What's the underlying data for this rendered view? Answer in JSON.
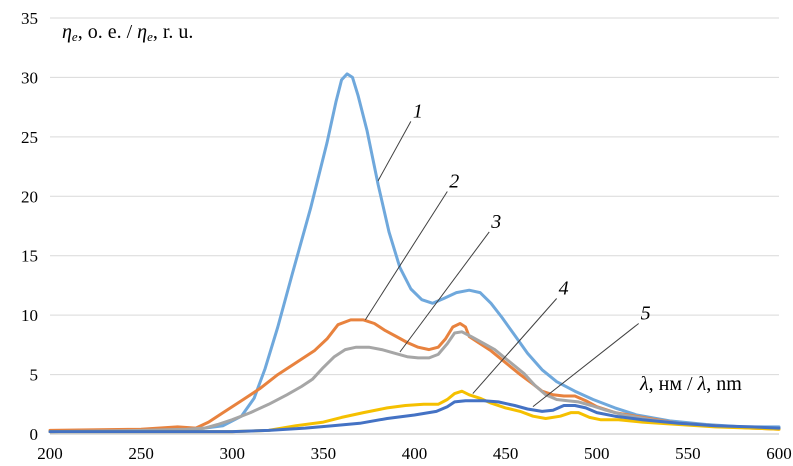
{
  "chart_data": {
    "type": "line",
    "title": "",
    "ylabel": {
      "sym": "η",
      "sub": "e",
      "text1": ", о. е. / ",
      "text2": ", r. u."
    },
    "xlabel": {
      "sym": "λ",
      "text1": ", нм / ",
      "text2": ", nm"
    },
    "xlim": [
      200,
      600
    ],
    "ylim": [
      0,
      35
    ],
    "x_ticks": [
      200,
      250,
      300,
      350,
      400,
      450,
      500,
      550,
      600
    ],
    "y_ticks": [
      0,
      5,
      10,
      15,
      20,
      25,
      30,
      35
    ],
    "grid": "horizontal",
    "legend": "none",
    "series": [
      {
        "name": "1",
        "color": "#6fa8dc",
        "points": [
          [
            200,
            0.2
          ],
          [
            250,
            0.3
          ],
          [
            280,
            0.4
          ],
          [
            295,
            0.7
          ],
          [
            305,
            1.5
          ],
          [
            312,
            3.0
          ],
          [
            318,
            5.5
          ],
          [
            325,
            9.0
          ],
          [
            333,
            13.5
          ],
          [
            343,
            19.0
          ],
          [
            352,
            24.5
          ],
          [
            357,
            28.0
          ],
          [
            360,
            29.8
          ],
          [
            363,
            30.3
          ],
          [
            366,
            30.0
          ],
          [
            369,
            28.5
          ],
          [
            374,
            25.5
          ],
          [
            380,
            21.0
          ],
          [
            386,
            17.0
          ],
          [
            392,
            14.0
          ],
          [
            398,
            12.2
          ],
          [
            404,
            11.3
          ],
          [
            410,
            11.0
          ],
          [
            416,
            11.4
          ],
          [
            423,
            11.9
          ],
          [
            430,
            12.1
          ],
          [
            436,
            11.9
          ],
          [
            442,
            11.0
          ],
          [
            448,
            9.8
          ],
          [
            455,
            8.3
          ],
          [
            462,
            6.8
          ],
          [
            470,
            5.4
          ],
          [
            478,
            4.4
          ],
          [
            488,
            3.6
          ],
          [
            498,
            2.9
          ],
          [
            510,
            2.2
          ],
          [
            522,
            1.6
          ],
          [
            540,
            1.1
          ],
          [
            560,
            0.8
          ],
          [
            580,
            0.6
          ],
          [
            600,
            0.6
          ]
        ]
      },
      {
        "name": "2",
        "color": "#e8823e",
        "points": [
          [
            200,
            0.3
          ],
          [
            250,
            0.4
          ],
          [
            270,
            0.6
          ],
          [
            280,
            0.5
          ],
          [
            287,
            1.0
          ],
          [
            295,
            1.8
          ],
          [
            305,
            2.8
          ],
          [
            315,
            3.8
          ],
          [
            325,
            5.0
          ],
          [
            335,
            6.0
          ],
          [
            345,
            7.0
          ],
          [
            352,
            8.0
          ],
          [
            358,
            9.2
          ],
          [
            365,
            9.6
          ],
          [
            372,
            9.6
          ],
          [
            378,
            9.3
          ],
          [
            384,
            8.7
          ],
          [
            390,
            8.2
          ],
          [
            396,
            7.7
          ],
          [
            402,
            7.3
          ],
          [
            408,
            7.1
          ],
          [
            413,
            7.3
          ],
          [
            417,
            8.0
          ],
          [
            421,
            9.0
          ],
          [
            425,
            9.3
          ],
          [
            428,
            9.0
          ],
          [
            430,
            8.2
          ],
          [
            435,
            7.7
          ],
          [
            442,
            7.0
          ],
          [
            450,
            6.0
          ],
          [
            458,
            5.0
          ],
          [
            465,
            4.2
          ],
          [
            470,
            3.6
          ],
          [
            476,
            3.3
          ],
          [
            482,
            3.2
          ],
          [
            488,
            3.2
          ],
          [
            494,
            2.8
          ],
          [
            500,
            2.3
          ],
          [
            510,
            1.8
          ],
          [
            525,
            1.4
          ],
          [
            545,
            0.9
          ],
          [
            565,
            0.7
          ],
          [
            585,
            0.5
          ],
          [
            600,
            0.4
          ]
        ]
      },
      {
        "name": "3",
        "color": "#a6a6a6",
        "points": [
          [
            200,
            0.2
          ],
          [
            250,
            0.3
          ],
          [
            275,
            0.4
          ],
          [
            285,
            0.5
          ],
          [
            292,
            0.8
          ],
          [
            300,
            1.2
          ],
          [
            310,
            1.8
          ],
          [
            320,
            2.5
          ],
          [
            330,
            3.3
          ],
          [
            338,
            4.0
          ],
          [
            344,
            4.6
          ],
          [
            350,
            5.6
          ],
          [
            356,
            6.5
          ],
          [
            362,
            7.1
          ],
          [
            368,
            7.3
          ],
          [
            375,
            7.3
          ],
          [
            382,
            7.1
          ],
          [
            389,
            6.8
          ],
          [
            396,
            6.5
          ],
          [
            402,
            6.4
          ],
          [
            408,
            6.4
          ],
          [
            413,
            6.7
          ],
          [
            418,
            7.6
          ],
          [
            422,
            8.5
          ],
          [
            426,
            8.6
          ],
          [
            431,
            8.2
          ],
          [
            437,
            7.7
          ],
          [
            444,
            7.1
          ],
          [
            452,
            6.1
          ],
          [
            460,
            5.1
          ],
          [
            466,
            4.1
          ],
          [
            472,
            3.3
          ],
          [
            478,
            2.9
          ],
          [
            484,
            2.8
          ],
          [
            490,
            2.7
          ],
          [
            497,
            2.4
          ],
          [
            505,
            2.0
          ],
          [
            515,
            1.6
          ],
          [
            530,
            1.2
          ],
          [
            550,
            0.8
          ],
          [
            570,
            0.6
          ],
          [
            600,
            0.5
          ]
        ]
      },
      {
        "name": "4",
        "color": "#f5c000",
        "points": [
          [
            200,
            0.2
          ],
          [
            250,
            0.2
          ],
          [
            300,
            0.2
          ],
          [
            320,
            0.3
          ],
          [
            335,
            0.7
          ],
          [
            350,
            1.0
          ],
          [
            360,
            1.4
          ],
          [
            372,
            1.8
          ],
          [
            385,
            2.2
          ],
          [
            395,
            2.4
          ],
          [
            405,
            2.5
          ],
          [
            413,
            2.5
          ],
          [
            418,
            2.9
          ],
          [
            422,
            3.4
          ],
          [
            426,
            3.6
          ],
          [
            430,
            3.3
          ],
          [
            436,
            3.0
          ],
          [
            442,
            2.6
          ],
          [
            450,
            2.2
          ],
          [
            458,
            1.9
          ],
          [
            465,
            1.5
          ],
          [
            472,
            1.3
          ],
          [
            480,
            1.5
          ],
          [
            486,
            1.8
          ],
          [
            490,
            1.8
          ],
          [
            496,
            1.4
          ],
          [
            502,
            1.2
          ],
          [
            512,
            1.2
          ],
          [
            525,
            1.0
          ],
          [
            545,
            0.8
          ],
          [
            565,
            0.6
          ],
          [
            585,
            0.5
          ],
          [
            600,
            0.4
          ]
        ]
      },
      {
        "name": "5",
        "color": "#4472c4",
        "points": [
          [
            200,
            0.2
          ],
          [
            250,
            0.2
          ],
          [
            300,
            0.2
          ],
          [
            320,
            0.3
          ],
          [
            340,
            0.5
          ],
          [
            355,
            0.7
          ],
          [
            370,
            0.9
          ],
          [
            385,
            1.3
          ],
          [
            400,
            1.6
          ],
          [
            412,
            1.9
          ],
          [
            418,
            2.3
          ],
          [
            422,
            2.7
          ],
          [
            428,
            2.8
          ],
          [
            438,
            2.8
          ],
          [
            446,
            2.7
          ],
          [
            455,
            2.4
          ],
          [
            462,
            2.1
          ],
          [
            470,
            1.9
          ],
          [
            476,
            2.0
          ],
          [
            482,
            2.4
          ],
          [
            488,
            2.4
          ],
          [
            494,
            2.2
          ],
          [
            500,
            1.8
          ],
          [
            510,
            1.5
          ],
          [
            525,
            1.2
          ],
          [
            545,
            0.9
          ],
          [
            565,
            0.7
          ],
          [
            585,
            0.6
          ],
          [
            600,
            0.5
          ]
        ]
      }
    ],
    "callouts": [
      {
        "label": "1",
        "tip": [
          380,
          21.3
        ],
        "end": [
          398,
          26.3
        ]
      },
      {
        "label": "2",
        "tip": [
          373,
          9.6
        ],
        "end": [
          418,
          20.4
        ]
      },
      {
        "label": "3",
        "tip": [
          392,
          6.9
        ],
        "end": [
          441,
          17.0
        ]
      },
      {
        "label": "4",
        "tip": [
          432,
          3.4
        ],
        "end": [
          478,
          11.4
        ]
      },
      {
        "label": "5",
        "tip": [
          465,
          2.3
        ],
        "end": [
          523,
          9.3
        ]
      }
    ]
  }
}
